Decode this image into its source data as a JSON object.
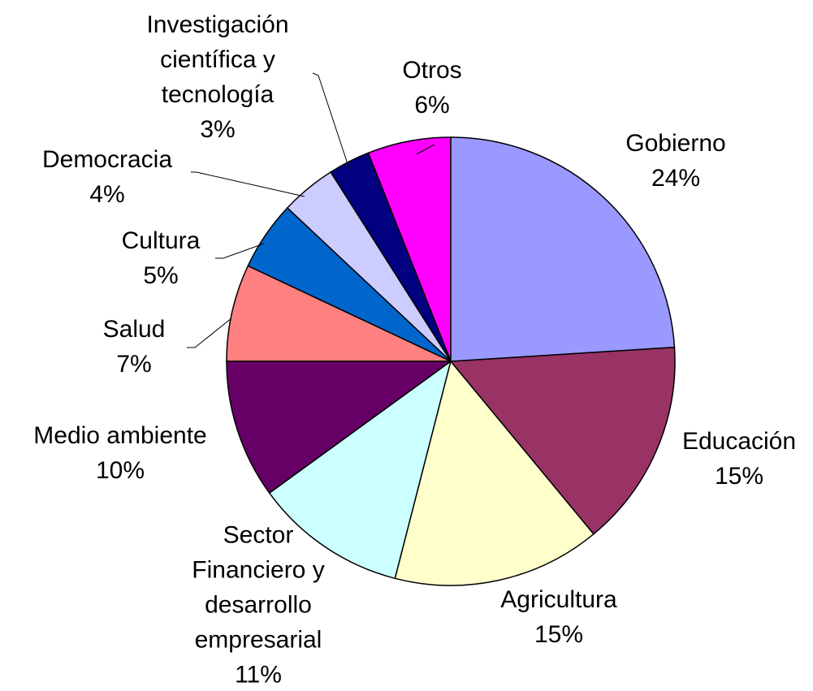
{
  "chart_data": {
    "type": "pie",
    "categories": [
      "Gobierno",
      "Educación",
      "Agricultura",
      "Sector Financiero y desarrollo empresarial",
      "Medio ambiente",
      "Salud",
      "Cultura",
      "Democracia",
      "Investigación científica y tecnología",
      "Otros"
    ],
    "values": [
      24,
      15,
      15,
      11,
      10,
      7,
      5,
      4,
      3,
      6
    ],
    "value_labels": [
      "24%",
      "15%",
      "15%",
      "11%",
      "10%",
      "7%",
      "5%",
      "4%",
      "3%",
      "6%"
    ],
    "colors": [
      "#9999ff",
      "#993366",
      "#ffffcc",
      "#ccffff",
      "#660066",
      "#ff8080",
      "#0066cc",
      "#ccccff",
      "#000080",
      "#ff00ff"
    ]
  }
}
